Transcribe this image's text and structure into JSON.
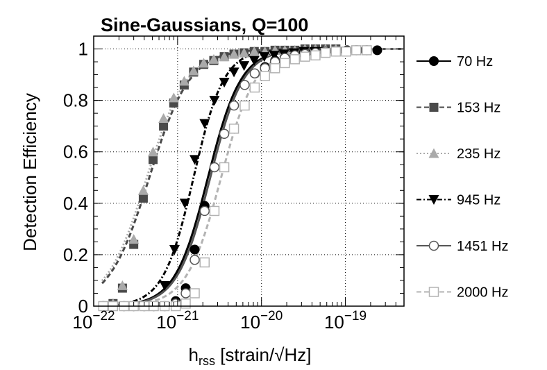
{
  "chart_data": {
    "type": "line",
    "title": "Sine-Gaussians, Q=100",
    "xlabel": "h_rss [strain/√Hz]",
    "ylabel": "Detection Efficiency",
    "x_scale": "log",
    "xlim": [
      1e-22,
      5e-19
    ],
    "ylim": [
      0,
      1.05
    ],
    "x_ticks": [
      {
        "value": 1e-22,
        "label_base": "10",
        "label_exp": "−22"
      },
      {
        "value": 1e-21,
        "label_base": "10",
        "label_exp": "−21"
      },
      {
        "value": 1e-20,
        "label_base": "10",
        "label_exp": "−20"
      },
      {
        "value": 1e-19,
        "label_base": "10",
        "label_exp": "−19"
      }
    ],
    "y_ticks": [
      0,
      0.2,
      0.4,
      0.6,
      0.8,
      1
    ],
    "y_tick_labels": [
      "0",
      "0.2",
      "0.4",
      "0.6",
      "0.8",
      "1"
    ],
    "grid": true,
    "legend_position": "right",
    "series": [
      {
        "name": "70 Hz",
        "color": "#000000",
        "marker": "filled-circle",
        "line": "solid",
        "x50": 2.3e-21,
        "slope": 2.2,
        "points": [
          [
            1.3e-22,
            0
          ],
          [
            1.7e-22,
            0
          ],
          [
            2.3e-22,
            0
          ],
          [
            3e-22,
            0
          ],
          [
            4e-22,
            0
          ],
          [
            5.2e-22,
            0
          ],
          [
            7e-22,
            0
          ],
          [
            9.5e-22,
            0.02
          ],
          [
            1.25e-21,
            0.07
          ],
          [
            1.6e-21,
            0.22
          ],
          [
            2.1e-21,
            0.39
          ],
          [
            2.75e-21,
            0.54
          ],
          [
            3.6e-21,
            0.67
          ],
          [
            4.7e-21,
            0.78
          ],
          [
            6.3e-21,
            0.86
          ],
          [
            8.3e-21,
            0.905
          ],
          [
            1.1e-20,
            0.93
          ],
          [
            1.45e-20,
            0.955
          ],
          [
            1.9e-20,
            0.97
          ],
          [
            2.6e-20,
            0.98
          ],
          [
            3.4e-20,
            0.985
          ],
          [
            4.5e-20,
            0.99
          ],
          [
            5.9e-20,
            0.99
          ],
          [
            8e-20,
            0.995
          ],
          [
            1.05e-19,
            0.995
          ],
          [
            1.4e-19,
            0.995
          ],
          [
            1.8e-19,
            0.995
          ],
          [
            2.4e-19,
            0.995
          ]
        ]
      },
      {
        "name": "153 Hz",
        "color": "#4a4a4a",
        "marker": "filled-square",
        "line": "dashed",
        "x50": 4.6e-22,
        "slope": 1.8,
        "points": [
          [
            1.3e-22,
            0
          ],
          [
            1.7e-22,
            0.01
          ],
          [
            2.2e-22,
            0.07
          ],
          [
            3e-22,
            0.24
          ],
          [
            3.9e-22,
            0.42
          ],
          [
            5.1e-22,
            0.57
          ],
          [
            6.8e-22,
            0.7
          ],
          [
            9e-22,
            0.79
          ],
          [
            1.2e-21,
            0.86
          ],
          [
            1.55e-21,
            0.91
          ],
          [
            2.05e-21,
            0.94
          ],
          [
            2.7e-21,
            0.955
          ],
          [
            3.6e-21,
            0.97
          ],
          [
            4.7e-21,
            0.98
          ],
          [
            6.2e-21,
            0.985
          ],
          [
            8.2e-21,
            0.99
          ],
          [
            1.1e-20,
            0.99
          ],
          [
            1.45e-20,
            0.995
          ],
          [
            1.9e-20,
            0.995
          ],
          [
            2.5e-20,
            0.995
          ],
          [
            3.3e-20,
            1.0
          ],
          [
            4.4e-20,
            1.0
          ],
          [
            5.8e-20,
            1.0
          ],
          [
            7.7e-20,
            1.0
          ]
        ]
      },
      {
        "name": "235 Hz",
        "color": "#aaaaaa",
        "marker": "filled-triangle-up",
        "line": "dotted",
        "x50": 4.3e-22,
        "slope": 1.8,
        "points": [
          [
            1.3e-22,
            0
          ],
          [
            1.7e-22,
            0.01
          ],
          [
            2.2e-22,
            0.08
          ],
          [
            3e-22,
            0.26
          ],
          [
            3.9e-22,
            0.45
          ],
          [
            5.1e-22,
            0.6
          ],
          [
            6.8e-22,
            0.73
          ],
          [
            9e-22,
            0.81
          ],
          [
            1.2e-21,
            0.875
          ],
          [
            1.55e-21,
            0.915
          ],
          [
            2.05e-21,
            0.945
          ],
          [
            2.7e-21,
            0.96
          ],
          [
            3.6e-21,
            0.97
          ],
          [
            4.7e-21,
            0.98
          ],
          [
            6.2e-21,
            0.985
          ],
          [
            8.2e-21,
            0.99
          ],
          [
            1.1e-20,
            0.99
          ],
          [
            1.45e-20,
            0.995
          ],
          [
            1.9e-20,
            0.995
          ],
          [
            2.5e-20,
            0.995
          ],
          [
            3.3e-20,
            1.0
          ],
          [
            4.4e-20,
            1.0
          ],
          [
            5.8e-20,
            1.0
          ],
          [
            7.7e-20,
            1.0
          ]
        ]
      },
      {
        "name": "945 Hz",
        "color": "#000000",
        "marker": "filled-triangle-down",
        "line": "dash-dot",
        "x50": 1.55e-21,
        "slope": 2.4,
        "points": [
          [
            1.3e-22,
            0
          ],
          [
            1.7e-22,
            0
          ],
          [
            2.3e-22,
            0
          ],
          [
            3e-22,
            0
          ],
          [
            4e-22,
            0
          ],
          [
            5.2e-22,
            0
          ],
          [
            7e-22,
            0.08
          ],
          [
            9.2e-22,
            0.22
          ],
          [
            1.22e-21,
            0.4
          ],
          [
            1.6e-21,
            0.57
          ],
          [
            2.1e-21,
            0.71
          ],
          [
            2.75e-21,
            0.8
          ],
          [
            3.6e-21,
            0.87
          ],
          [
            4.7e-21,
            0.91
          ],
          [
            6.2e-21,
            0.935
          ],
          [
            8.2e-21,
            0.955
          ],
          [
            1.08e-20,
            0.97
          ],
          [
            1.42e-20,
            0.975
          ],
          [
            1.85e-20,
            0.98
          ],
          [
            2.45e-20,
            0.985
          ],
          [
            3.2e-20,
            0.99
          ],
          [
            4.3e-20,
            0.99
          ],
          [
            5.6e-20,
            0.99
          ]
        ]
      },
      {
        "name": "1451 Hz",
        "color": "#555555",
        "marker": "open-circle",
        "line": "solid",
        "x50": 2.45e-21,
        "slope": 2.2,
        "points": [
          [
            1.3e-22,
            0
          ],
          [
            1.7e-22,
            0
          ],
          [
            2.3e-22,
            0
          ],
          [
            3e-22,
            0
          ],
          [
            4e-22,
            0
          ],
          [
            5.2e-22,
            0
          ],
          [
            7e-22,
            0
          ],
          [
            9.5e-22,
            0.01
          ],
          [
            1.25e-21,
            0.05
          ],
          [
            1.6e-21,
            0.18
          ],
          [
            2.1e-21,
            0.37
          ],
          [
            2.75e-21,
            0.54
          ],
          [
            3.6e-21,
            0.67
          ],
          [
            4.7e-21,
            0.78
          ],
          [
            6.3e-21,
            0.86
          ],
          [
            8.3e-21,
            0.905
          ],
          [
            1.1e-20,
            0.925
          ],
          [
            1.45e-20,
            0.95
          ],
          [
            1.9e-20,
            0.965
          ],
          [
            2.5e-20,
            0.975
          ],
          [
            3.3e-20,
            0.98
          ],
          [
            4.4e-20,
            0.985
          ],
          [
            5.8e-20,
            0.99
          ],
          [
            7.7e-20,
            0.99
          ],
          [
            1.02e-19,
            0.99
          ],
          [
            1.35e-19,
            0.995
          ],
          [
            1.8e-19,
            0.995
          ]
        ]
      },
      {
        "name": "2000 Hz",
        "color": "#b3b3b3",
        "marker": "open-square",
        "line": "dashed",
        "x50": 3.3e-21,
        "slope": 2.1,
        "points": [
          [
            1.3e-22,
            0
          ],
          [
            1.7e-22,
            0
          ],
          [
            2.3e-22,
            0
          ],
          [
            3e-22,
            0
          ],
          [
            4e-22,
            0
          ],
          [
            5.2e-22,
            0
          ],
          [
            7e-22,
            0
          ],
          [
            9.5e-22,
            0
          ],
          [
            1.25e-21,
            0.01
          ],
          [
            1.6e-21,
            0.05
          ],
          [
            2.1e-21,
            0.17
          ],
          [
            2.75e-21,
            0.37
          ],
          [
            3.6e-21,
            0.54
          ],
          [
            4.7e-21,
            0.69
          ],
          [
            6.3e-21,
            0.78
          ],
          [
            8.3e-21,
            0.85
          ],
          [
            1.1e-20,
            0.895
          ],
          [
            1.45e-20,
            0.925
          ],
          [
            1.9e-20,
            0.945
          ],
          [
            2.5e-20,
            0.96
          ],
          [
            3.3e-20,
            0.97
          ],
          [
            4.4e-20,
            0.975
          ],
          [
            5.8e-20,
            0.985
          ],
          [
            7.7e-20,
            0.99
          ],
          [
            1.02e-19,
            0.99
          ],
          [
            1.35e-19,
            0.995
          ],
          [
            1.8e-19,
            0.995
          ]
        ]
      }
    ]
  }
}
